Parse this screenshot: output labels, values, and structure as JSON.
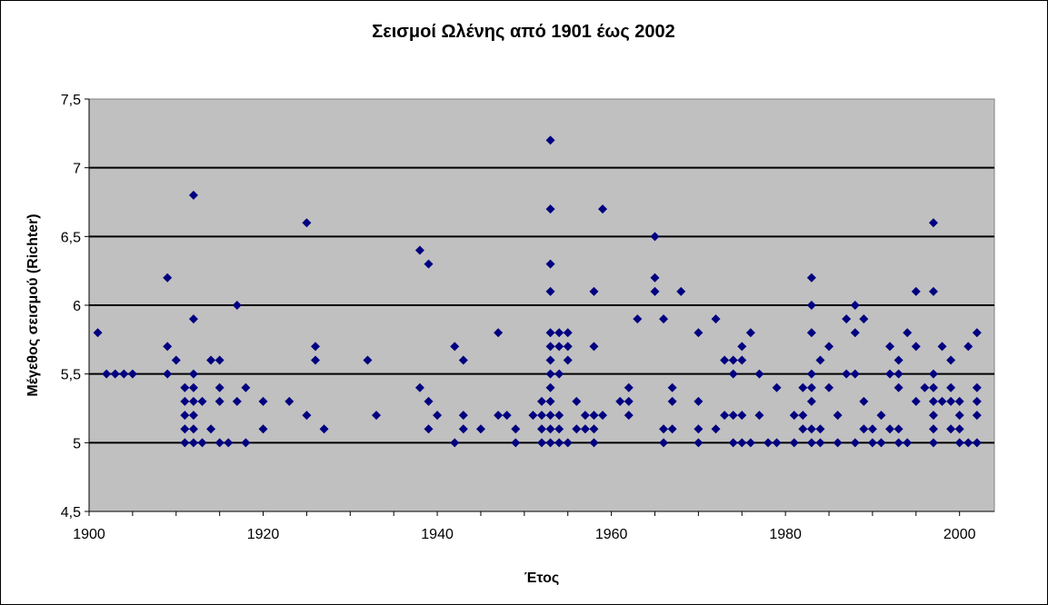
{
  "chart_data": {
    "type": "scatter",
    "title": "Σεισμοί Ωλένης από 1901 έως 2002",
    "xlabel": "Έτος",
    "ylabel": "Μέγεθος σεισμού (Richter)",
    "xlim": [
      1900,
      2004
    ],
    "ylim": [
      4.5,
      7.5
    ],
    "xticks": [
      1900,
      1920,
      1940,
      1960,
      1980,
      2000
    ],
    "yticks": [
      4.5,
      5,
      5.5,
      6,
      6.5,
      7,
      7.5
    ],
    "ytick_labels": [
      "4,5",
      "5",
      "5,5",
      "6",
      "6,5",
      "7",
      "7,5"
    ],
    "grid": "horizontal",
    "colors": {
      "plot_bg": "#c0c0c0",
      "marker": "#000080",
      "grid": "#000000"
    },
    "points": [
      [
        1901,
        5.8
      ],
      [
        1902,
        5.5
      ],
      [
        1903,
        5.5
      ],
      [
        1904,
        5.5
      ],
      [
        1905,
        5.5
      ],
      [
        1909,
        6.2
      ],
      [
        1909,
        5.7
      ],
      [
        1909,
        5.5
      ],
      [
        1910,
        5.6
      ],
      [
        1911,
        5.4
      ],
      [
        1911,
        5.3
      ],
      [
        1911,
        5.2
      ],
      [
        1911,
        5.1
      ],
      [
        1911,
        5.0
      ],
      [
        1912,
        6.8
      ],
      [
        1912,
        5.9
      ],
      [
        1912,
        5.5
      ],
      [
        1912,
        5.4
      ],
      [
        1912,
        5.3
      ],
      [
        1912,
        5.2
      ],
      [
        1912,
        5.1
      ],
      [
        1912,
        5.0
      ],
      [
        1913,
        5.3
      ],
      [
        1913,
        5.0
      ],
      [
        1914,
        5.6
      ],
      [
        1914,
        5.1
      ],
      [
        1915,
        5.6
      ],
      [
        1915,
        5.4
      ],
      [
        1915,
        5.3
      ],
      [
        1915,
        5.0
      ],
      [
        1916,
        5.0
      ],
      [
        1917,
        6.0
      ],
      [
        1917,
        5.3
      ],
      [
        1918,
        5.4
      ],
      [
        1918,
        5.0
      ],
      [
        1920,
        5.3
      ],
      [
        1920,
        5.1
      ],
      [
        1923,
        5.3
      ],
      [
        1925,
        6.6
      ],
      [
        1925,
        5.2
      ],
      [
        1926,
        5.7
      ],
      [
        1926,
        5.6
      ],
      [
        1927,
        5.1
      ],
      [
        1932,
        5.6
      ],
      [
        1933,
        5.2
      ],
      [
        1938,
        6.4
      ],
      [
        1938,
        5.4
      ],
      [
        1939,
        6.3
      ],
      [
        1939,
        5.3
      ],
      [
        1939,
        5.1
      ],
      [
        1940,
        5.2
      ],
      [
        1942,
        5.7
      ],
      [
        1942,
        5.0
      ],
      [
        1943,
        5.6
      ],
      [
        1943,
        5.2
      ],
      [
        1943,
        5.1
      ],
      [
        1945,
        5.1
      ],
      [
        1947,
        5.8
      ],
      [
        1947,
        5.2
      ],
      [
        1948,
        5.2
      ],
      [
        1949,
        5.1
      ],
      [
        1949,
        5.0
      ],
      [
        1951,
        5.2
      ],
      [
        1952,
        5.3
      ],
      [
        1952,
        5.2
      ],
      [
        1952,
        5.1
      ],
      [
        1952,
        5.0
      ],
      [
        1953,
        7.2
      ],
      [
        1953,
        6.7
      ],
      [
        1953,
        6.3
      ],
      [
        1953,
        6.1
      ],
      [
        1953,
        5.8
      ],
      [
        1953,
        5.7
      ],
      [
        1953,
        5.6
      ],
      [
        1953,
        5.5
      ],
      [
        1953,
        5.4
      ],
      [
        1953,
        5.3
      ],
      [
        1953,
        5.2
      ],
      [
        1953,
        5.1
      ],
      [
        1953,
        5.0
      ],
      [
        1954,
        5.8
      ],
      [
        1954,
        5.7
      ],
      [
        1954,
        5.5
      ],
      [
        1954,
        5.2
      ],
      [
        1954,
        5.1
      ],
      [
        1954,
        5.0
      ],
      [
        1955,
        5.8
      ],
      [
        1955,
        5.7
      ],
      [
        1955,
        5.6
      ],
      [
        1955,
        5.0
      ],
      [
        1956,
        5.3
      ],
      [
        1956,
        5.1
      ],
      [
        1957,
        5.2
      ],
      [
        1957,
        5.1
      ],
      [
        1958,
        6.1
      ],
      [
        1958,
        5.7
      ],
      [
        1958,
        5.2
      ],
      [
        1958,
        5.1
      ],
      [
        1958,
        5.0
      ],
      [
        1959,
        6.7
      ],
      [
        1959,
        5.2
      ],
      [
        1961,
        5.3
      ],
      [
        1962,
        5.4
      ],
      [
        1962,
        5.3
      ],
      [
        1962,
        5.2
      ],
      [
        1963,
        5.9
      ],
      [
        1965,
        6.5
      ],
      [
        1965,
        6.2
      ],
      [
        1965,
        6.1
      ],
      [
        1966,
        5.9
      ],
      [
        1966,
        5.1
      ],
      [
        1966,
        5.0
      ],
      [
        1967,
        5.4
      ],
      [
        1967,
        5.3
      ],
      [
        1967,
        5.1
      ],
      [
        1968,
        6.1
      ],
      [
        1970,
        5.8
      ],
      [
        1970,
        5.3
      ],
      [
        1970,
        5.1
      ],
      [
        1970,
        5.0
      ],
      [
        1972,
        5.9
      ],
      [
        1972,
        5.1
      ],
      [
        1973,
        5.6
      ],
      [
        1973,
        5.2
      ],
      [
        1974,
        5.6
      ],
      [
        1974,
        5.5
      ],
      [
        1974,
        5.2
      ],
      [
        1974,
        5.0
      ],
      [
        1975,
        5.7
      ],
      [
        1975,
        5.6
      ],
      [
        1975,
        5.2
      ],
      [
        1975,
        5.0
      ],
      [
        1976,
        5.8
      ],
      [
        1976,
        5.0
      ],
      [
        1977,
        5.5
      ],
      [
        1977,
        5.2
      ],
      [
        1978,
        5.0
      ],
      [
        1979,
        5.4
      ],
      [
        1979,
        5.0
      ],
      [
        1981,
        5.2
      ],
      [
        1981,
        5.0
      ],
      [
        1982,
        5.4
      ],
      [
        1982,
        5.2
      ],
      [
        1982,
        5.1
      ],
      [
        1983,
        6.2
      ],
      [
        1983,
        6.0
      ],
      [
        1983,
        5.8
      ],
      [
        1983,
        5.5
      ],
      [
        1983,
        5.4
      ],
      [
        1983,
        5.3
      ],
      [
        1983,
        5.1
      ],
      [
        1983,
        5.0
      ],
      [
        1984,
        5.6
      ],
      [
        1984,
        5.1
      ],
      [
        1984,
        5.0
      ],
      [
        1985,
        5.7
      ],
      [
        1985,
        5.4
      ],
      [
        1986,
        5.2
      ],
      [
        1986,
        5.0
      ],
      [
        1987,
        5.9
      ],
      [
        1987,
        5.5
      ],
      [
        1988,
        6.0
      ],
      [
        1988,
        5.8
      ],
      [
        1988,
        5.5
      ],
      [
        1988,
        5.0
      ],
      [
        1989,
        5.9
      ],
      [
        1989,
        5.3
      ],
      [
        1989,
        5.1
      ],
      [
        1990,
        5.1
      ],
      [
        1990,
        5.0
      ],
      [
        1991,
        5.2
      ],
      [
        1991,
        5.0
      ],
      [
        1992,
        5.7
      ],
      [
        1992,
        5.5
      ],
      [
        1992,
        5.1
      ],
      [
        1993,
        5.6
      ],
      [
        1993,
        5.5
      ],
      [
        1993,
        5.4
      ],
      [
        1993,
        5.1
      ],
      [
        1993,
        5.0
      ],
      [
        1994,
        5.8
      ],
      [
        1994,
        5.0
      ],
      [
        1995,
        6.1
      ],
      [
        1995,
        5.7
      ],
      [
        1995,
        5.3
      ],
      [
        1996,
        5.4
      ],
      [
        1997,
        6.6
      ],
      [
        1997,
        6.1
      ],
      [
        1997,
        5.5
      ],
      [
        1997,
        5.4
      ],
      [
        1997,
        5.3
      ],
      [
        1997,
        5.2
      ],
      [
        1997,
        5.1
      ],
      [
        1997,
        5.0
      ],
      [
        1998,
        5.7
      ],
      [
        1998,
        5.3
      ],
      [
        1999,
        5.6
      ],
      [
        1999,
        5.4
      ],
      [
        1999,
        5.3
      ],
      [
        1999,
        5.1
      ],
      [
        2000,
        5.3
      ],
      [
        2000,
        5.2
      ],
      [
        2000,
        5.1
      ],
      [
        2000,
        5.0
      ],
      [
        2001,
        5.7
      ],
      [
        2001,
        5.0
      ],
      [
        2002,
        5.8
      ],
      [
        2002,
        5.4
      ],
      [
        2002,
        5.3
      ],
      [
        2002,
        5.2
      ],
      [
        2002,
        5.0
      ]
    ]
  }
}
